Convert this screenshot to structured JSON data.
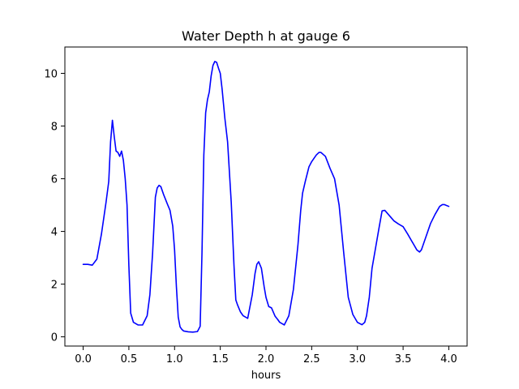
{
  "chart_data": {
    "type": "line",
    "title": "Water Depth h at gauge 6",
    "xlabel": "hours",
    "ylabel": "",
    "xlim": [
      -0.2,
      4.2
    ],
    "ylim": [
      -0.35,
      11.0
    ],
    "x_ticks": [
      0.0,
      0.5,
      1.0,
      1.5,
      2.0,
      2.5,
      3.0,
      3.5,
      4.0
    ],
    "x_tick_labels": [
      "0.0",
      "0.5",
      "1.0",
      "1.5",
      "2.0",
      "2.5",
      "3.0",
      "3.5",
      "4.0"
    ],
    "y_ticks": [
      0,
      2,
      4,
      6,
      8,
      10
    ],
    "y_tick_labels": [
      "0",
      "2",
      "4",
      "6",
      "8",
      "10"
    ],
    "grid": false,
    "series": [
      {
        "color": "#0000ff",
        "x": [
          0.0,
          0.05,
          0.1,
          0.15,
          0.2,
          0.25,
          0.28,
          0.3,
          0.32,
          0.34,
          0.36,
          0.38,
          0.4,
          0.42,
          0.44,
          0.46,
          0.48,
          0.5,
          0.52,
          0.55,
          0.6,
          0.65,
          0.7,
          0.73,
          0.76,
          0.79,
          0.81,
          0.83,
          0.85,
          0.88,
          0.92,
          0.95,
          0.98,
          1.0,
          1.02,
          1.04,
          1.06,
          1.08,
          1.1,
          1.15,
          1.2,
          1.25,
          1.28,
          1.3,
          1.32,
          1.34,
          1.36,
          1.38,
          1.4,
          1.42,
          1.44,
          1.46,
          1.48,
          1.5,
          1.52,
          1.55,
          1.58,
          1.62,
          1.65,
          1.67,
          1.69,
          1.72,
          1.75,
          1.8,
          1.85,
          1.88,
          1.9,
          1.92,
          1.95,
          1.98,
          2.0,
          2.03,
          2.06,
          2.1,
          2.13,
          2.15,
          2.2,
          2.25,
          2.3,
          2.35,
          2.38,
          2.4,
          2.43,
          2.47,
          2.5,
          2.55,
          2.58,
          2.6,
          2.65,
          2.7,
          2.75,
          2.8,
          2.85,
          2.9,
          2.95,
          3.0,
          3.05,
          3.08,
          3.1,
          3.13,
          3.16,
          3.2,
          3.24,
          3.27,
          3.3,
          3.35,
          3.4,
          3.45,
          3.5,
          3.55,
          3.6,
          3.65,
          3.68,
          3.7,
          3.75,
          3.8,
          3.85,
          3.9,
          3.93,
          3.95,
          4.0
        ],
        "y": [
          2.75,
          2.75,
          2.72,
          2.95,
          3.9,
          5.1,
          5.9,
          7.4,
          8.22,
          7.6,
          7.05,
          7.0,
          6.85,
          7.05,
          6.7,
          6.0,
          5.0,
          2.7,
          0.9,
          0.55,
          0.45,
          0.45,
          0.8,
          1.6,
          3.2,
          5.3,
          5.65,
          5.75,
          5.7,
          5.4,
          5.05,
          4.8,
          4.2,
          3.3,
          1.9,
          0.75,
          0.38,
          0.28,
          0.22,
          0.19,
          0.18,
          0.2,
          0.4,
          3.2,
          6.9,
          8.5,
          9.0,
          9.3,
          9.9,
          10.3,
          10.45,
          10.42,
          10.2,
          10.0,
          9.4,
          8.3,
          7.4,
          5.1,
          2.7,
          1.4,
          1.2,
          0.95,
          0.8,
          0.7,
          1.6,
          2.4,
          2.75,
          2.85,
          2.6,
          1.9,
          1.5,
          1.15,
          1.1,
          0.78,
          0.65,
          0.55,
          0.45,
          0.8,
          1.8,
          3.5,
          4.8,
          5.45,
          5.9,
          6.45,
          6.65,
          6.9,
          7.0,
          7.0,
          6.85,
          6.4,
          6.0,
          5.0,
          3.2,
          1.5,
          0.85,
          0.55,
          0.46,
          0.55,
          0.8,
          1.5,
          2.6,
          3.4,
          4.2,
          4.78,
          4.8,
          4.6,
          4.4,
          4.28,
          4.18,
          3.9,
          3.6,
          3.3,
          3.22,
          3.3,
          3.8,
          4.3,
          4.65,
          4.95,
          5.02,
          5.02,
          4.95
        ]
      }
    ]
  }
}
